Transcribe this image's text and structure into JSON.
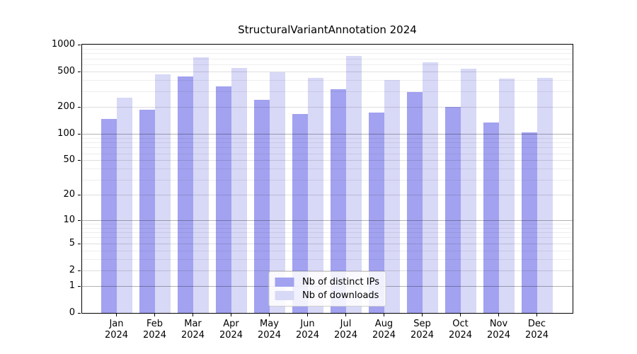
{
  "title": "StructuralVariantAnnotation 2024",
  "colors": {
    "distinct_ips_bar": "#a2a2f0",
    "downloads_bar": "#d8d8f7",
    "grid_major": "#b3b3b3",
    "axis_line": "#000000",
    "legend_border": "#cccccc"
  },
  "chart_data": {
    "type": "bar",
    "title": "StructuralVariantAnnotation 2024",
    "categories": [
      "Jan 2024",
      "Feb 2024",
      "Mar 2024",
      "Apr 2024",
      "May 2024",
      "Jun 2024",
      "Jul 2024",
      "Aug 2024",
      "Sep 2024",
      "Oct 2024",
      "Nov 2024",
      "Dec 2024"
    ],
    "series": [
      {
        "name": "Nb of distinct IPs",
        "color": "#a2a2f0",
        "values": [
          146,
          187,
          437,
          343,
          239,
          166,
          315,
          174,
          296,
          202,
          135,
          104
        ]
      },
      {
        "name": "Nb of downloads",
        "color": "#d8d8f7",
        "values": [
          256,
          465,
          720,
          550,
          490,
          426,
          750,
          405,
          630,
          540,
          420,
          426
        ]
      }
    ],
    "xlabel": "",
    "ylabel": "",
    "yscale": "log1p",
    "ylim": [
      0,
      1000
    ],
    "y_ticks": [
      0,
      1,
      2,
      5,
      10,
      20,
      50,
      100,
      200,
      500,
      1000
    ],
    "y_minor_gridlines": [
      3,
      4,
      6,
      7,
      8,
      9,
      30,
      40,
      60,
      70,
      80,
      90,
      300,
      400,
      600,
      700,
      800,
      900
    ],
    "grid": true,
    "legend_position": "lower center"
  }
}
